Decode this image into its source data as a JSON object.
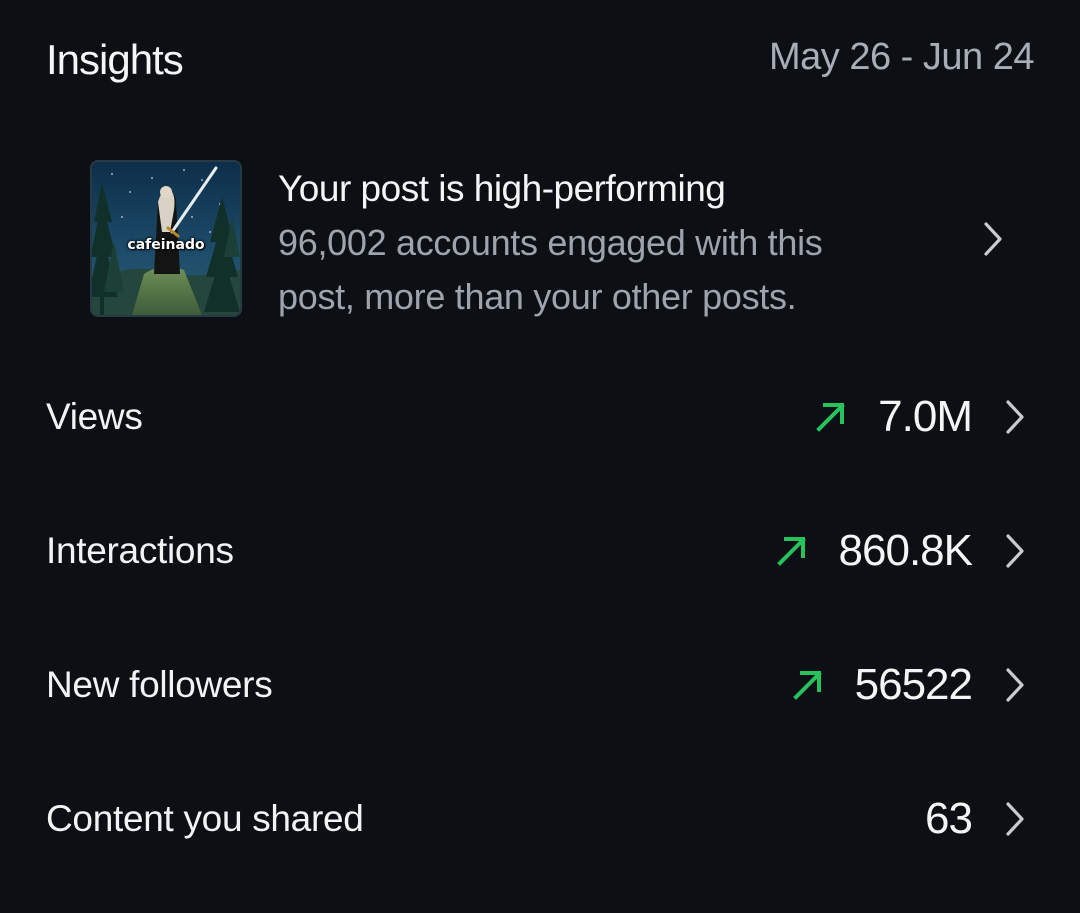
{
  "header": {
    "title": "Insights",
    "date_range": "May 26 - Jun 24"
  },
  "highlight": {
    "thumbnail_caption": "cafeinado",
    "title": "Your post is high-performing",
    "description": "96,002 accounts engaged with this post, more than your other posts."
  },
  "metrics": [
    {
      "label": "Views",
      "value": "7.0M",
      "trend": "up"
    },
    {
      "label": "Interactions",
      "value": "860.8K",
      "trend": "up"
    },
    {
      "label": "New followers",
      "value": "56522",
      "trend": "up"
    },
    {
      "label": "Content you shared",
      "value": "63",
      "trend": "none"
    }
  ],
  "colors": {
    "background": "#0c0f14",
    "trend_up": "#27c25c",
    "secondary_text": "#9ea3ac"
  }
}
